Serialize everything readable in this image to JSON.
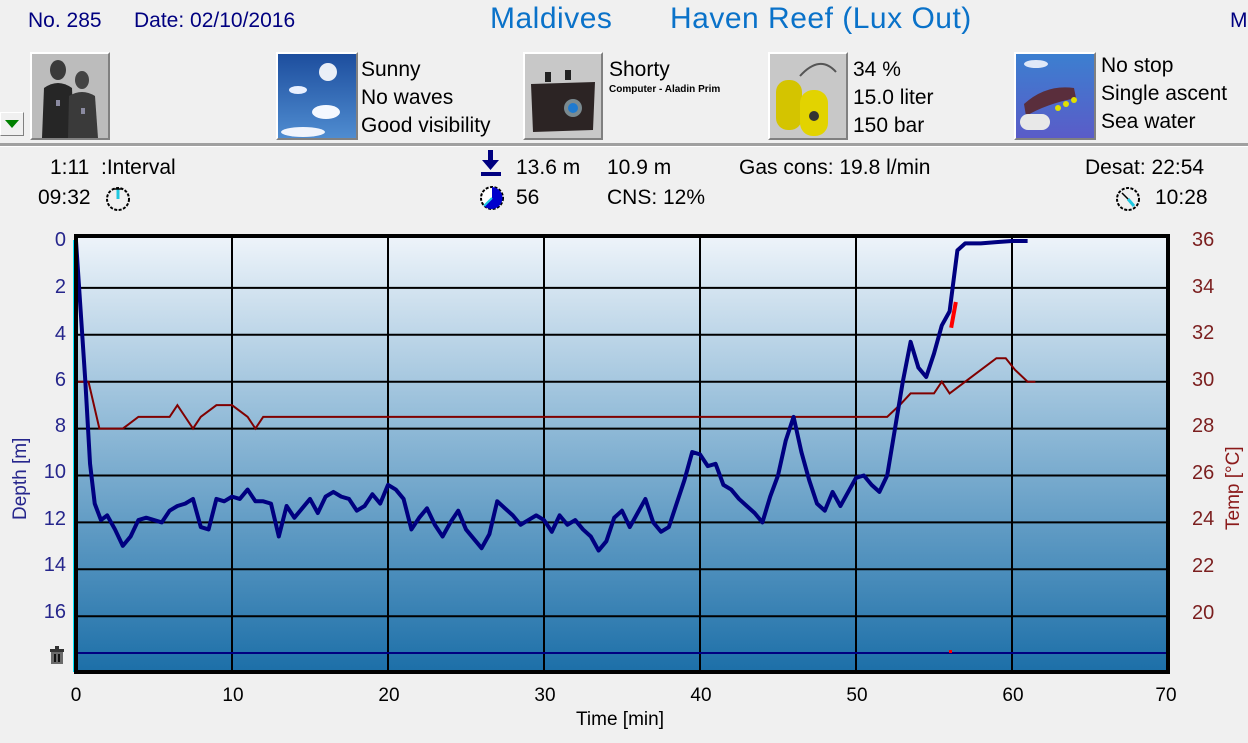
{
  "header": {
    "dive_no": "No. 285",
    "date": "Date: 02/10/2016",
    "location": "Maldives",
    "site": "Haven Reef (Lux Out)",
    "truncated_right": "M"
  },
  "equipment_row": {
    "dropdown_icon": "triangle-down",
    "divers_icon": "divers-wetsuit-photo",
    "weather": {
      "icon": "sunny-sky-photo",
      "lines": [
        "Sunny",
        "No waves",
        "Good visibility"
      ]
    },
    "gear": {
      "icon": "dive-bag-photo",
      "suit": "Shorty",
      "computer": "Computer - Aladin Prim"
    },
    "tank": {
      "icon": "yellow-tanks-photo",
      "lines": [
        "34 %",
        "15.0 liter",
        "150 bar"
      ]
    },
    "dive_type": {
      "icon": "diver-ascent-photo",
      "lines": [
        "No stop",
        "Single ascent",
        "Sea water"
      ]
    }
  },
  "stats": {
    "interval": "1:11",
    "interval_label": ":Interval",
    "entry_time": "09:32",
    "max_depth": "13.6 m",
    "avg_depth": "10.9 m",
    "duration": "56",
    "cns": "CNS:  12%",
    "gas_cons": "Gas cons: 19.8 l/min",
    "desat": "Desat:  22:54",
    "exit_time": "10:28"
  },
  "colors": {
    "depth_line": "#000080",
    "temp_line": "#800000",
    "ascent_warning": "#ff0000",
    "start_marker": "#00e5ff",
    "bg_top": "#eef4fa",
    "bg_bottom": "#1c6fa8",
    "title_blue": "#0a72c9"
  },
  "chart_data": {
    "type": "line",
    "title": "",
    "xlabel": "Time [min]",
    "ylabel": "Depth [m]",
    "y2label": "Temp [°C]",
    "xlim": [
      0,
      70
    ],
    "ylim": [
      17.5,
      0
    ],
    "y2lim": [
      18,
      36
    ],
    "x_ticks": [
      "0",
      "10",
      "20",
      "30",
      "40",
      "50",
      "60",
      "70"
    ],
    "y_ticks": [
      "0",
      "2",
      "4",
      "6",
      "8",
      "10",
      "12",
      "14",
      "16"
    ],
    "y2_ticks": [
      "36",
      "34",
      "32",
      "30",
      "28",
      "26",
      "24",
      "22",
      "20"
    ],
    "grid": true,
    "legend": "none",
    "series": [
      {
        "name": "Depth",
        "axis": "left",
        "x": [
          0,
          0.3,
          0.6,
          0.9,
          1.2,
          1.6,
          2.0,
          2.5,
          3.0,
          3.5,
          4.0,
          4.5,
          5.0,
          5.5,
          6.0,
          6.5,
          7.0,
          7.5,
          8.0,
          8.5,
          9.0,
          9.5,
          10.0,
          10.5,
          11.0,
          11.5,
          12.0,
          12.5,
          13.0,
          13.5,
          14.0,
          14.5,
          15.0,
          15.5,
          16.0,
          16.5,
          17.0,
          17.5,
          18.0,
          18.5,
          19.0,
          19.5,
          20.0,
          20.5,
          21.0,
          21.5,
          22.0,
          22.5,
          23.0,
          23.5,
          24.0,
          24.5,
          25.0,
          25.5,
          26.0,
          26.5,
          27.0,
          27.5,
          28.0,
          28.5,
          29.0,
          29.5,
          30.0,
          30.5,
          31.0,
          31.5,
          32.0,
          32.5,
          33.0,
          33.5,
          34.0,
          34.5,
          35.0,
          35.5,
          36.0,
          36.5,
          37.0,
          37.5,
          38.0,
          38.5,
          39.0,
          39.5,
          40.0,
          40.5,
          41.0,
          41.5,
          42.0,
          42.5,
          43.0,
          43.5,
          44.0,
          44.5,
          45.0,
          45.5,
          46.0,
          46.5,
          47.0,
          47.5,
          48.0,
          48.5,
          49.0,
          49.5,
          50.0,
          50.5,
          51.0,
          51.5,
          52.0,
          52.5,
          53.0,
          53.5,
          54.0,
          54.5,
          55.0,
          55.5,
          56.0,
          56.5,
          57.0,
          57.5,
          58.0,
          59.0,
          60.0,
          61.0
        ],
        "values": [
          0,
          3.0,
          6.0,
          9.5,
          11.2,
          11.9,
          11.7,
          12.3,
          13.0,
          12.6,
          11.9,
          11.8,
          11.9,
          12.0,
          11.5,
          11.3,
          11.2,
          11.0,
          12.2,
          12.3,
          11.0,
          11.1,
          10.9,
          11.0,
          10.6,
          11.1,
          11.1,
          11.2,
          12.6,
          11.3,
          11.8,
          11.4,
          11.0,
          11.6,
          10.9,
          10.7,
          10.9,
          11.0,
          11.5,
          11.3,
          10.8,
          11.2,
          10.4,
          10.6,
          11.0,
          12.3,
          11.8,
          11.4,
          12.1,
          12.6,
          12.0,
          11.5,
          12.3,
          12.7,
          13.1,
          12.5,
          11.1,
          11.4,
          11.7,
          12.1,
          11.9,
          11.7,
          11.9,
          12.4,
          11.7,
          12.1,
          11.9,
          12.3,
          12.6,
          13.2,
          12.8,
          11.8,
          11.5,
          12.2,
          11.6,
          11.0,
          12.0,
          12.4,
          12.2,
          11.2,
          10.2,
          9.0,
          9.1,
          9.6,
          9.5,
          10.4,
          10.6,
          11.0,
          11.3,
          11.6,
          12.0,
          10.9,
          10.0,
          8.5,
          7.5,
          9.0,
          10.2,
          11.2,
          11.5,
          10.7,
          11.3,
          10.7,
          10.1,
          10.0,
          10.4,
          10.7,
          10.0,
          8.0,
          6.0,
          4.3,
          5.4,
          5.8,
          4.8,
          3.6,
          3.0,
          0.4,
          0.1,
          0.1,
          0.1,
          0.05,
          0.0,
          0.0
        ]
      },
      {
        "name": "Temperature",
        "axis": "right",
        "x": [
          0,
          0.8,
          1.5,
          2.0,
          3.0,
          4.0,
          6.0,
          6.5,
          7.0,
          7.5,
          8.0,
          9.0,
          10.0,
          11.0,
          11.5,
          12.0,
          20,
          30,
          40,
          50,
          52.0,
          52.8,
          53.5,
          54.5,
          55.0,
          55.5,
          56.0,
          57.0,
          58.0,
          59.0,
          59.6,
          60.2,
          61.0,
          61.5
        ],
        "values": [
          30,
          30,
          28,
          28,
          28,
          28.5,
          28.5,
          29,
          28.5,
          28,
          28.5,
          29,
          29,
          28.5,
          28,
          28.5,
          28.5,
          28.5,
          28.5,
          28.5,
          28.5,
          29,
          29.5,
          29.5,
          29.5,
          30,
          29.5,
          30,
          30.5,
          31,
          31,
          30.5,
          30,
          30
        ]
      }
    ],
    "annotations": [
      {
        "type": "ascent-warning",
        "x": [
          55.8,
          56.4
        ],
        "note": "red segment on depth curve"
      },
      {
        "type": "bottom-marker-line",
        "y_depth": 17.5,
        "icon": "trash-icon"
      }
    ]
  }
}
